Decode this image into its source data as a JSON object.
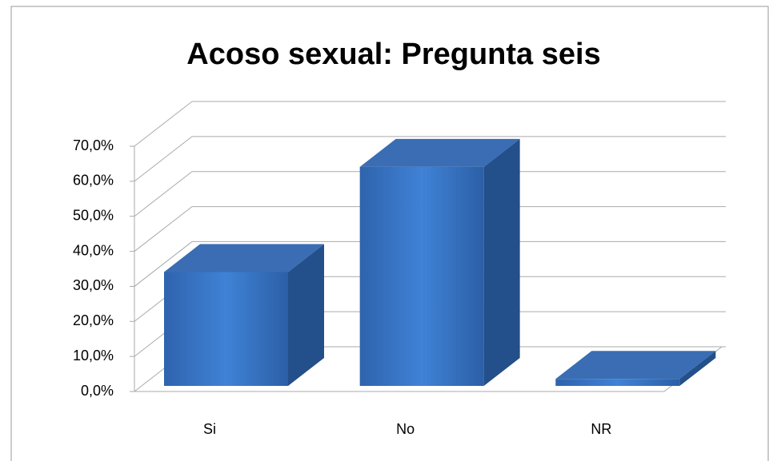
{
  "chart_data": {
    "type": "bar",
    "title": "Acoso sexual: Pregunta seis",
    "categories": [
      "Si",
      "No",
      "NR"
    ],
    "values": [
      32.5,
      62.5,
      2
    ],
    "color": "#3a78c9",
    "ylim": [
      0,
      70
    ],
    "yticks": [
      {
        "value": 0,
        "label": "0,0%"
      },
      {
        "value": 10,
        "label": "10,0%"
      },
      {
        "value": 20,
        "label": "20,0%"
      },
      {
        "value": 30,
        "label": "30,0%"
      },
      {
        "value": 40,
        "label": "40,0%"
      },
      {
        "value": 50,
        "label": "50,0%"
      },
      {
        "value": 60,
        "label": "60,0%"
      },
      {
        "value": 70,
        "label": "70,0%"
      }
    ],
    "grid": true
  }
}
